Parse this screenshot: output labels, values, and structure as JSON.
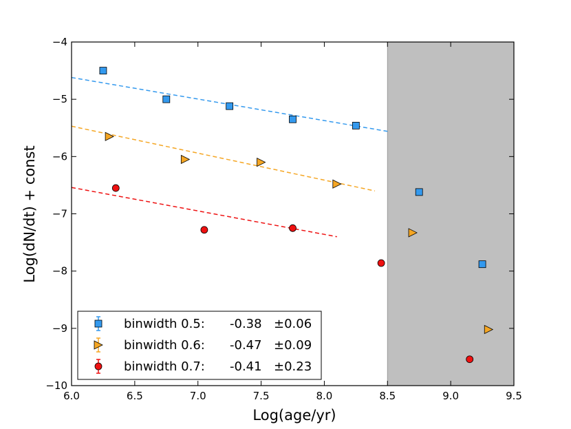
{
  "chart_data": {
    "type": "scatter",
    "title": "",
    "xlabel": "Log(age/yr)",
    "ylabel": "Log(dN/dt) + const",
    "xlim": [
      6.0,
      9.5
    ],
    "ylim": [
      -10,
      -4
    ],
    "xticks": [
      "6.0",
      "6.5",
      "7.0",
      "7.5",
      "8.0",
      "8.5",
      "9.0",
      "9.5"
    ],
    "yticks": [
      "−4",
      "−5",
      "−6",
      "−7",
      "−8",
      "−9",
      "−10"
    ],
    "shaded_region": {
      "x_from": 8.5,
      "x_to": 9.5,
      "color": "#bfbfbf"
    },
    "series": [
      {
        "name": "binwidth 0.5:",
        "slope_text": "-0.38",
        "error_text": "±0.06",
        "marker": "square",
        "color": "#3399ee",
        "line_color": "#3399ee",
        "points": [
          {
            "x": 6.25,
            "y": -4.5
          },
          {
            "x": 6.75,
            "y": -5.0
          },
          {
            "x": 7.25,
            "y": -5.12
          },
          {
            "x": 7.75,
            "y": -5.35
          },
          {
            "x": 8.25,
            "y": -5.46
          },
          {
            "x": 8.75,
            "y": -6.62
          },
          {
            "x": 9.25,
            "y": -7.88
          }
        ],
        "fit": {
          "x0": 6.0,
          "y0": -4.62,
          "x1": 8.5,
          "y1": -5.56
        }
      },
      {
        "name": "binwidth 0.6:",
        "slope_text": "-0.47",
        "error_text": "±0.09",
        "marker": "triangle-right",
        "color": "#f5a623",
        "line_color": "#f5a623",
        "points": [
          {
            "x": 6.3,
            "y": -5.65
          },
          {
            "x": 6.9,
            "y": -6.05
          },
          {
            "x": 7.5,
            "y": -6.1
          },
          {
            "x": 8.1,
            "y": -6.48
          },
          {
            "x": 8.7,
            "y": -7.33
          },
          {
            "x": 9.3,
            "y": -9.02
          }
        ],
        "fit": {
          "x0": 6.0,
          "y0": -5.47,
          "x1": 8.4,
          "y1": -6.6
        }
      },
      {
        "name": "binwidth 0.7:",
        "slope_text": "-0.41",
        "error_text": "±0.23",
        "marker": "circle",
        "color": "#ee1111",
        "line_color": "#ee1111",
        "points": [
          {
            "x": 6.35,
            "y": -6.55
          },
          {
            "x": 7.05,
            "y": -7.28
          },
          {
            "x": 7.75,
            "y": -7.25
          },
          {
            "x": 8.45,
            "y": -7.86
          },
          {
            "x": 9.15,
            "y": -9.54
          }
        ],
        "fit": {
          "x0": 6.0,
          "y0": -6.54,
          "x1": 8.1,
          "y1": -7.4
        }
      }
    ]
  }
}
